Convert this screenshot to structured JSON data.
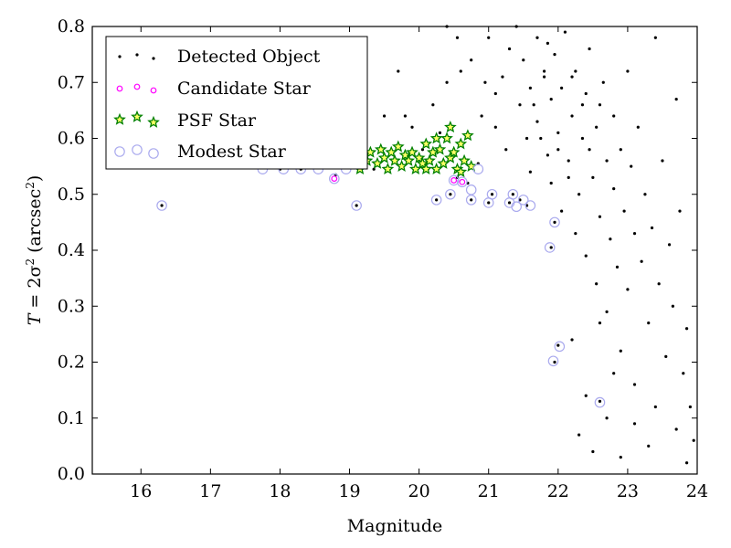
{
  "chart_data": {
    "type": "scatter",
    "xlabel": "Magnitude",
    "ylabel": {
      "prefix": "T",
      "eq": " = 2σ",
      "sup1": "2",
      "mid": " (arcsec",
      "sup2": "2",
      "end": ")"
    },
    "xlim": [
      15.3,
      24.0
    ],
    "ylim": [
      0.0,
      0.8
    ],
    "xticks": [
      16,
      17,
      18,
      19,
      20,
      21,
      22,
      23,
      24
    ],
    "yticks": [
      0.0,
      0.1,
      0.2,
      0.3,
      0.4,
      0.5,
      0.6,
      0.7,
      0.8
    ],
    "grid": false,
    "legend_position": "upper-left",
    "series": [
      {
        "name": "Detected Object",
        "marker": "dot",
        "color": "#000000",
        "points": [
          [
            16.3,
            0.48
          ],
          [
            18.0,
            0.545
          ],
          [
            18.3,
            0.545
          ],
          [
            18.8,
            0.535
          ],
          [
            19.1,
            0.48
          ],
          [
            19.2,
            0.55
          ],
          [
            19.35,
            0.545
          ],
          [
            19.5,
            0.64
          ],
          [
            19.8,
            0.64
          ],
          [
            20.05,
            0.58
          ],
          [
            20.25,
            0.49
          ],
          [
            20.45,
            0.5
          ],
          [
            20.55,
            0.53
          ],
          [
            20.7,
            0.52
          ],
          [
            20.75,
            0.49
          ],
          [
            20.85,
            0.555
          ],
          [
            21.0,
            0.485
          ],
          [
            21.05,
            0.5
          ],
          [
            21.3,
            0.485
          ],
          [
            21.35,
            0.5
          ],
          [
            21.45,
            0.49
          ],
          [
            21.55,
            0.48
          ],
          [
            21.9,
            0.405
          ],
          [
            21.95,
            0.45
          ],
          [
            21.95,
            0.2
          ],
          [
            22.0,
            0.23
          ],
          [
            22.6,
            0.13
          ],
          [
            19.7,
            0.72
          ],
          [
            19.9,
            0.62
          ],
          [
            20.2,
            0.66
          ],
          [
            20.4,
            0.7
          ],
          [
            20.3,
            0.61
          ],
          [
            20.6,
            0.72
          ],
          [
            20.55,
            0.78
          ],
          [
            20.75,
            0.74
          ],
          [
            20.4,
            0.8
          ],
          [
            20.95,
            0.7
          ],
          [
            20.9,
            0.64
          ],
          [
            21.0,
            0.78
          ],
          [
            21.1,
            0.68
          ],
          [
            21.2,
            0.71
          ],
          [
            21.1,
            0.62
          ],
          [
            21.25,
            0.58
          ],
          [
            21.3,
            0.76
          ],
          [
            21.4,
            0.8
          ],
          [
            21.45,
            0.66
          ],
          [
            21.5,
            0.74
          ],
          [
            21.55,
            0.6
          ],
          [
            21.6,
            0.69
          ],
          [
            21.6,
            0.54
          ],
          [
            21.7,
            0.78
          ],
          [
            21.7,
            0.63
          ],
          [
            21.8,
            0.71
          ],
          [
            21.85,
            0.57
          ],
          [
            21.9,
            0.67
          ],
          [
            21.9,
            0.52
          ],
          [
            21.95,
            0.75
          ],
          [
            22.0,
            0.61
          ],
          [
            22.05,
            0.69
          ],
          [
            22.05,
            0.47
          ],
          [
            22.1,
            0.79
          ],
          [
            22.15,
            0.56
          ],
          [
            22.2,
            0.64
          ],
          [
            22.25,
            0.72
          ],
          [
            22.25,
            0.43
          ],
          [
            22.3,
            0.5
          ],
          [
            22.35,
            0.6
          ],
          [
            22.4,
            0.68
          ],
          [
            22.4,
            0.39
          ],
          [
            22.45,
            0.76
          ],
          [
            22.5,
            0.53
          ],
          [
            22.55,
            0.62
          ],
          [
            22.55,
            0.34
          ],
          [
            22.6,
            0.46
          ],
          [
            22.65,
            0.7
          ],
          [
            22.7,
            0.56
          ],
          [
            22.7,
            0.29
          ],
          [
            22.75,
            0.42
          ],
          [
            22.8,
            0.64
          ],
          [
            22.8,
            0.51
          ],
          [
            22.85,
            0.37
          ],
          [
            22.9,
            0.58
          ],
          [
            22.9,
            0.22
          ],
          [
            22.95,
            0.47
          ],
          [
            23.0,
            0.72
          ],
          [
            23.0,
            0.33
          ],
          [
            23.05,
            0.55
          ],
          [
            23.1,
            0.43
          ],
          [
            23.1,
            0.16
          ],
          [
            23.15,
            0.62
          ],
          [
            23.2,
            0.38
          ],
          [
            23.25,
            0.5
          ],
          [
            23.3,
            0.27
          ],
          [
            23.35,
            0.44
          ],
          [
            23.4,
            0.78
          ],
          [
            23.4,
            0.12
          ],
          [
            23.45,
            0.34
          ],
          [
            23.5,
            0.56
          ],
          [
            23.55,
            0.21
          ],
          [
            23.6,
            0.41
          ],
          [
            23.65,
            0.3
          ],
          [
            23.7,
            0.67
          ],
          [
            23.7,
            0.08
          ],
          [
            23.75,
            0.47
          ],
          [
            23.8,
            0.18
          ],
          [
            23.85,
            0.26
          ],
          [
            23.85,
            0.02
          ],
          [
            23.9,
            0.12
          ],
          [
            23.95,
            0.06
          ],
          [
            22.3,
            0.07
          ],
          [
            22.5,
            0.04
          ],
          [
            22.7,
            0.1
          ],
          [
            22.9,
            0.03
          ],
          [
            23.1,
            0.09
          ],
          [
            23.3,
            0.05
          ],
          [
            22.4,
            0.14
          ],
          [
            22.8,
            0.18
          ],
          [
            22.2,
            0.24
          ],
          [
            22.6,
            0.27
          ],
          [
            21.8,
            0.72
          ],
          [
            22.0,
            0.58
          ],
          [
            22.2,
            0.71
          ],
          [
            21.65,
            0.66
          ],
          [
            22.35,
            0.66
          ],
          [
            22.15,
            0.53
          ],
          [
            21.75,
            0.6
          ],
          [
            22.45,
            0.58
          ],
          [
            21.85,
            0.77
          ],
          [
            22.6,
            0.66
          ]
        ]
      },
      {
        "name": "Candidate Star",
        "marker": "small-ring",
        "color": "#ff00ff",
        "points": [
          [
            18.78,
            0.528
          ],
          [
            20.5,
            0.525
          ],
          [
            20.62,
            0.522
          ]
        ]
      },
      {
        "name": "PSF Star",
        "marker": "star",
        "color": "#008000",
        "points": [
          [
            19.05,
            0.555
          ],
          [
            19.15,
            0.545
          ],
          [
            19.25,
            0.56
          ],
          [
            19.3,
            0.575
          ],
          [
            19.4,
            0.555
          ],
          [
            19.45,
            0.58
          ],
          [
            19.5,
            0.565
          ],
          [
            19.55,
            0.545
          ],
          [
            19.6,
            0.575
          ],
          [
            19.65,
            0.56
          ],
          [
            19.7,
            0.585
          ],
          [
            19.75,
            0.55
          ],
          [
            19.8,
            0.57
          ],
          [
            19.85,
            0.56
          ],
          [
            19.9,
            0.575
          ],
          [
            19.95,
            0.545
          ],
          [
            20.0,
            0.565
          ],
          [
            20.05,
            0.555
          ],
          [
            20.1,
            0.59
          ],
          [
            20.15,
            0.56
          ],
          [
            20.2,
            0.575
          ],
          [
            20.25,
            0.545
          ],
          [
            20.3,
            0.58
          ],
          [
            20.35,
            0.555
          ],
          [
            20.4,
            0.6
          ],
          [
            20.45,
            0.565
          ],
          [
            20.5,
            0.575
          ],
          [
            20.55,
            0.545
          ],
          [
            20.6,
            0.59
          ],
          [
            20.65,
            0.56
          ],
          [
            20.7,
            0.605
          ],
          [
            20.75,
            0.55
          ],
          [
            20.45,
            0.62
          ],
          [
            20.25,
            0.6
          ],
          [
            20.6,
            0.54
          ],
          [
            20.1,
            0.545
          ]
        ]
      },
      {
        "name": "Modest Star",
        "marker": "ring",
        "color": "#aaaaee",
        "points": [
          [
            16.3,
            0.48
          ],
          [
            17.75,
            0.545
          ],
          [
            18.05,
            0.545
          ],
          [
            18.3,
            0.545
          ],
          [
            18.55,
            0.545
          ],
          [
            18.78,
            0.528
          ],
          [
            18.95,
            0.545
          ],
          [
            19.1,
            0.48
          ],
          [
            20.25,
            0.49
          ],
          [
            20.45,
            0.5
          ],
          [
            20.5,
            0.525
          ],
          [
            20.62,
            0.522
          ],
          [
            20.75,
            0.508
          ],
          [
            20.75,
            0.49
          ],
          [
            20.85,
            0.545
          ],
          [
            21.0,
            0.485
          ],
          [
            21.05,
            0.5
          ],
          [
            21.3,
            0.485
          ],
          [
            21.35,
            0.5
          ],
          [
            21.4,
            0.478
          ],
          [
            21.5,
            0.49
          ],
          [
            21.6,
            0.48
          ],
          [
            21.88,
            0.405
          ],
          [
            21.95,
            0.45
          ],
          [
            21.93,
            0.202
          ],
          [
            22.02,
            0.228
          ],
          [
            22.6,
            0.128
          ]
        ]
      }
    ]
  }
}
